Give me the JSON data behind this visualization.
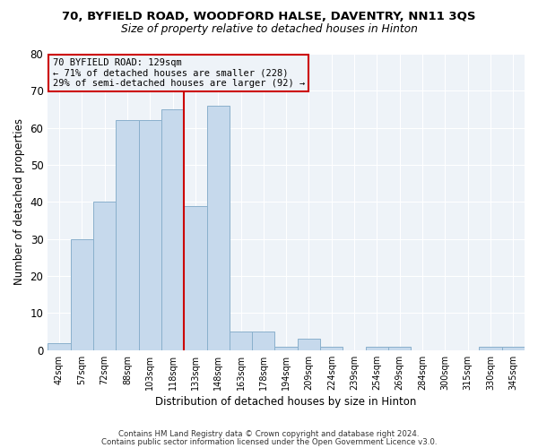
{
  "title1": "70, BYFIELD ROAD, WOODFORD HALSE, DAVENTRY, NN11 3QS",
  "title2": "Size of property relative to detached houses in Hinton",
  "xlabel": "Distribution of detached houses by size in Hinton",
  "ylabel": "Number of detached properties",
  "bar_color": "#c6d9ec",
  "bar_edge_color": "#8ab0cc",
  "categories": [
    "42sqm",
    "57sqm",
    "72sqm",
    "88sqm",
    "103sqm",
    "118sqm",
    "133sqm",
    "148sqm",
    "163sqm",
    "178sqm",
    "194sqm",
    "209sqm",
    "224sqm",
    "239sqm",
    "254sqm",
    "269sqm",
    "284sqm",
    "300sqm",
    "315sqm",
    "330sqm",
    "345sqm"
  ],
  "values": [
    2,
    30,
    40,
    62,
    62,
    65,
    39,
    66,
    5,
    5,
    1,
    3,
    1,
    0,
    1,
    1,
    0,
    0,
    0,
    1,
    1
  ],
  "ylim": [
    0,
    80
  ],
  "yticks": [
    0,
    10,
    20,
    30,
    40,
    50,
    60,
    70,
    80
  ],
  "vline_x": 5.5,
  "vline_color": "#cc0000",
  "annotation_line1": "70 BYFIELD ROAD: 129sqm",
  "annotation_line2": "← 71% of detached houses are smaller (228)",
  "annotation_line3": "29% of semi-detached houses are larger (92) →",
  "annotation_box_edgecolor": "#cc0000",
  "footer1": "Contains HM Land Registry data © Crown copyright and database right 2024.",
  "footer2": "Contains public sector information licensed under the Open Government Licence v3.0.",
  "bg_color": "#ffffff",
  "plot_bg_color": "#eef3f8",
  "grid_color": "#ffffff"
}
